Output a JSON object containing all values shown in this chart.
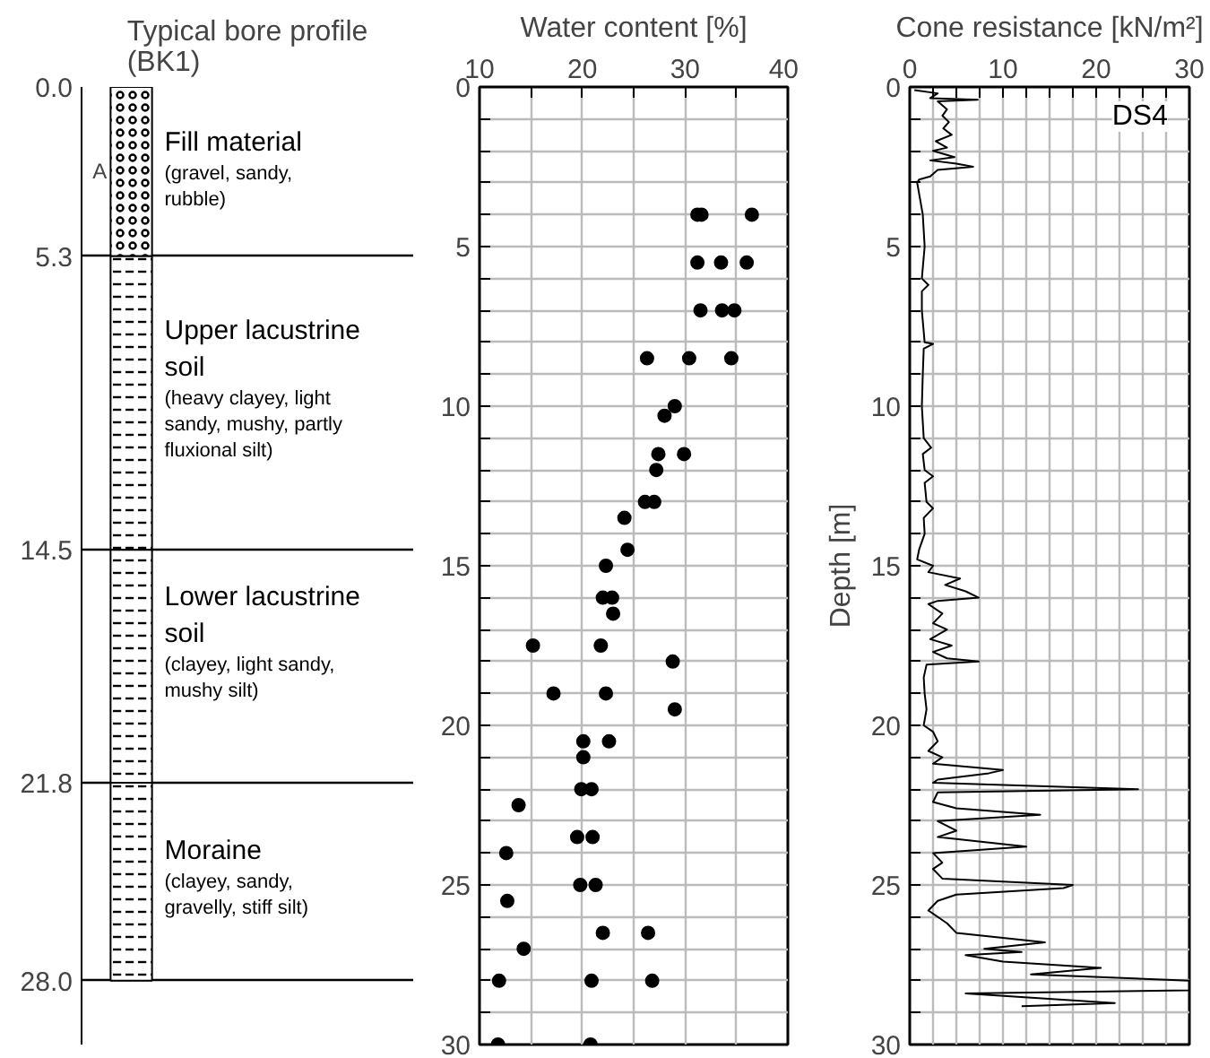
{
  "chart_data": [
    {
      "type": "bar",
      "stacked": true,
      "title": "Typical bore profile\n(BK1)",
      "categories": [
        null
      ],
      "series": [
        {
          "name": "Fill material",
          "color": "#ffffff",
          "values": [
            5.3
          ]
        },
        {
          "name": "Upper lacustrine\nsoil",
          "color": "#ffffff",
          "values": [
            9.2
          ]
        },
        {
          "name": "Lower lacustrine\nsoil",
          "color": "#ffffff",
          "values": [
            7.3
          ]
        },
        {
          "name": "Moraine",
          "color": "#ffffff",
          "values": [
            6.2
          ]
        }
      ],
      "annotations": [
        "(gravel, sandy,\nrubble)",
        "(heavy clayey, light\nsandy, mushy, partly\nfluxional silt)",
        "(clayey, light sandy,\nmushy silt)",
        "(clayey, sandy,\ngravelly, stiff silt)",
        "A"
      ],
      "ylim": [
        30,
        0
      ],
      "yticks": [
        {
          "value": 0,
          "label": "0.0"
        },
        5.3,
        14.5,
        21.8,
        {
          "value": 28,
          "label": "28.0"
        }
      ],
      "grid": "y",
      "tick_labels": "y"
    },
    {
      "type": "scatter",
      "title": "Water content [%]",
      "marker": "circle",
      "grid": true,
      "series": [
        {
          "color": "#000000",
          "x": [
            31.2,
            31.6,
            36.5,
            31.2,
            33.5,
            36.0,
            31.5,
            33.6,
            34.8,
            26.3,
            30.4,
            34.5,
            29.0,
            28.0,
            27.4,
            29.9,
            27.2,
            26.1,
            27.0,
            24.1,
            24.4,
            22.3,
            22.0,
            22.9,
            23.0,
            15.2,
            21.8,
            28.8,
            17.2,
            22.3,
            29.0,
            20.1,
            22.6,
            20.1,
            19.9,
            20.9,
            13.8,
            19.5,
            21.0,
            12.6,
            19.8,
            21.3,
            12.7,
            22.0,
            26.4,
            14.3,
            11.9,
            20.9,
            26.8,
            11.8,
            20.8
          ],
          "values": [
            4.0,
            4.0,
            4.0,
            5.5,
            5.5,
            5.5,
            7.0,
            7.0,
            7.0,
            8.5,
            8.5,
            8.5,
            10.0,
            10.3,
            11.5,
            11.5,
            12.0,
            13.0,
            13.0,
            13.5,
            14.5,
            15.0,
            16.0,
            16.0,
            16.5,
            17.5,
            17.5,
            18.0,
            19.0,
            19.0,
            19.5,
            20.5,
            20.5,
            21.0,
            22.0,
            22.0,
            22.5,
            23.5,
            23.5,
            24.0,
            25.0,
            25.0,
            25.5,
            26.5,
            26.5,
            27.0,
            28.0,
            28.0,
            28.0,
            30.0,
            30.0
          ]
        }
      ],
      "xlim": [
        10,
        40
      ],
      "xticks": [
        10,
        {
          "value": 15,
          "label": null
        },
        20,
        {
          "value": 25,
          "label": null
        },
        30,
        {
          "value": 35,
          "label": null
        },
        40
      ],
      "ylim": [
        30,
        0
      ],
      "yticks": [
        0,
        {
          "value": 1,
          "label": null
        },
        {
          "value": 2,
          "label": null
        },
        {
          "value": 3,
          "label": null
        },
        {
          "value": 4,
          "label": null
        },
        5,
        {
          "value": 6,
          "label": null
        },
        {
          "value": 7,
          "label": null
        },
        {
          "value": 8,
          "label": null
        },
        {
          "value": 9,
          "label": null
        },
        10,
        {
          "value": 11,
          "label": null
        },
        {
          "value": 12,
          "label": null
        },
        {
          "value": 13,
          "label": null
        },
        {
          "value": 14,
          "label": null
        },
        15,
        {
          "value": 16,
          "label": null
        },
        {
          "value": 17,
          "label": null
        },
        {
          "value": 18,
          "label": null
        },
        {
          "value": 19,
          "label": null
        },
        20,
        {
          "value": 21,
          "label": null
        },
        {
          "value": 22,
          "label": null
        },
        {
          "value": 23,
          "label": null
        },
        {
          "value": 24,
          "label": null
        },
        25,
        {
          "value": 26,
          "label": null
        },
        {
          "value": 27,
          "label": null
        },
        {
          "value": 28,
          "label": null
        },
        {
          "value": 29,
          "label": null
        },
        30
      ]
    },
    {
      "type": "line",
      "title": "Cone resistance [kN/m²]",
      "ylabel": "Depth [m]",
      "grid": true,
      "line_style": "solid",
      "series": [
        {
          "name": "DS4",
          "color": "#000000",
          "x": [
            0.5,
            3.0,
            2.2,
            7.3,
            3.0,
            4.0,
            3.5,
            4.2,
            3.6,
            4.5,
            2.8,
            4.0,
            2.5,
            4.8,
            2.2,
            5.0,
            6.8,
            3.0,
            2.2,
            1.0,
            0.8,
            1.4,
            1.6,
            1.3,
            2.0,
            1.3,
            1.3,
            1.6,
            2.5,
            1.5,
            1.4,
            1.3,
            1.5,
            2.3,
            1.4,
            1.6,
            2.5,
            1.6,
            1.8,
            2.5,
            1.5,
            1.6,
            1.0,
            0.8,
            2.5,
            2.0,
            5.4,
            3.8,
            6.0,
            7.4,
            3.0,
            2.0,
            3.5,
            2.5,
            4.0,
            2.2,
            4.5,
            2.5,
            4.0,
            7.4,
            1.8,
            1.5,
            1.6,
            1.8,
            1.5,
            2.5,
            3.0,
            2.0,
            3.5,
            2.5,
            10.0,
            8.5,
            3.0,
            2.5,
            24.5,
            3.0,
            2.5,
            5.0,
            14.0,
            3.0,
            5.0,
            3.0,
            12.5,
            2.5,
            3.5,
            2.5,
            3.5,
            17.5,
            16.5,
            5.0,
            3.0,
            2.0,
            4.0,
            5.0,
            14.5,
            8.0,
            12.0,
            6.0,
            10.0,
            20.5,
            13.0,
            30.0,
            30.0,
            6.0,
            22.0,
            12.0
          ],
          "values": [
            0.1,
            0.2,
            0.35,
            0.4,
            0.45,
            0.7,
            0.9,
            1.1,
            1.3,
            1.5,
            1.7,
            1.9,
            2.0,
            2.2,
            2.3,
            2.4,
            2.5,
            2.6,
            2.8,
            2.9,
            3.0,
            4.0,
            5.0,
            6.0,
            6.2,
            6.4,
            7.0,
            8.0,
            8.05,
            8.2,
            9.0,
            10.0,
            11.0,
            11.3,
            11.5,
            12.0,
            12.2,
            12.4,
            13.0,
            13.2,
            13.5,
            14.0,
            14.5,
            14.8,
            15.0,
            15.2,
            15.4,
            15.6,
            15.8,
            16.0,
            16.1,
            16.2,
            16.5,
            16.8,
            17.0,
            17.3,
            17.5,
            17.7,
            17.9,
            18.0,
            18.1,
            18.5,
            19.0,
            19.5,
            20.0,
            20.2,
            20.5,
            20.8,
            21.0,
            21.2,
            21.4,
            21.5,
            21.7,
            21.8,
            22.0,
            22.1,
            22.4,
            22.6,
            22.8,
            23.0,
            23.3,
            23.5,
            23.8,
            24.0,
            24.3,
            24.5,
            24.8,
            25.0,
            25.1,
            25.3,
            25.5,
            25.8,
            26.2,
            26.5,
            26.8,
            27.0,
            27.1,
            27.2,
            27.4,
            27.6,
            27.8,
            28.0,
            28.3,
            28.4,
            28.7,
            28.8
          ]
        }
      ],
      "xlim": [
        0,
        30
      ],
      "xticks": [
        0,
        {
          "value": 2.5,
          "label": null
        },
        {
          "value": 5,
          "label": null
        },
        {
          "value": 7.5,
          "label": null
        },
        10,
        {
          "value": 12.5,
          "label": null
        },
        {
          "value": 15,
          "label": null
        },
        {
          "value": 17.5,
          "label": null
        },
        20,
        {
          "value": 22.5,
          "label": null
        },
        {
          "value": 25,
          "label": null
        },
        {
          "value": 27.5,
          "label": null
        },
        30
      ],
      "ylim": [
        30,
        0
      ],
      "yticks": [
        0,
        {
          "value": 1,
          "label": null
        },
        {
          "value": 2,
          "label": null
        },
        {
          "value": 3,
          "label": null
        },
        {
          "value": 4,
          "label": null
        },
        5,
        {
          "value": 6,
          "label": null
        },
        {
          "value": 7,
          "label": null
        },
        {
          "value": 8,
          "label": null
        },
        {
          "value": 9,
          "label": null
        },
        10,
        {
          "value": 11,
          "label": null
        },
        {
          "value": 12,
          "label": null
        },
        {
          "value": 13,
          "label": null
        },
        {
          "value": 14,
          "label": null
        },
        15,
        {
          "value": 16,
          "label": null
        },
        {
          "value": 17,
          "label": null
        },
        {
          "value": 18,
          "label": null
        },
        {
          "value": 19,
          "label": null
        },
        20,
        {
          "value": 21,
          "label": null
        },
        {
          "value": 22,
          "label": null
        },
        {
          "value": 23,
          "label": null
        },
        {
          "value": 24,
          "label": null
        },
        25,
        {
          "value": 26,
          "label": null
        },
        {
          "value": 27,
          "label": null
        },
        {
          "value": 28,
          "label": null
        },
        {
          "value": 29,
          "label": null
        },
        30
      ]
    }
  ]
}
